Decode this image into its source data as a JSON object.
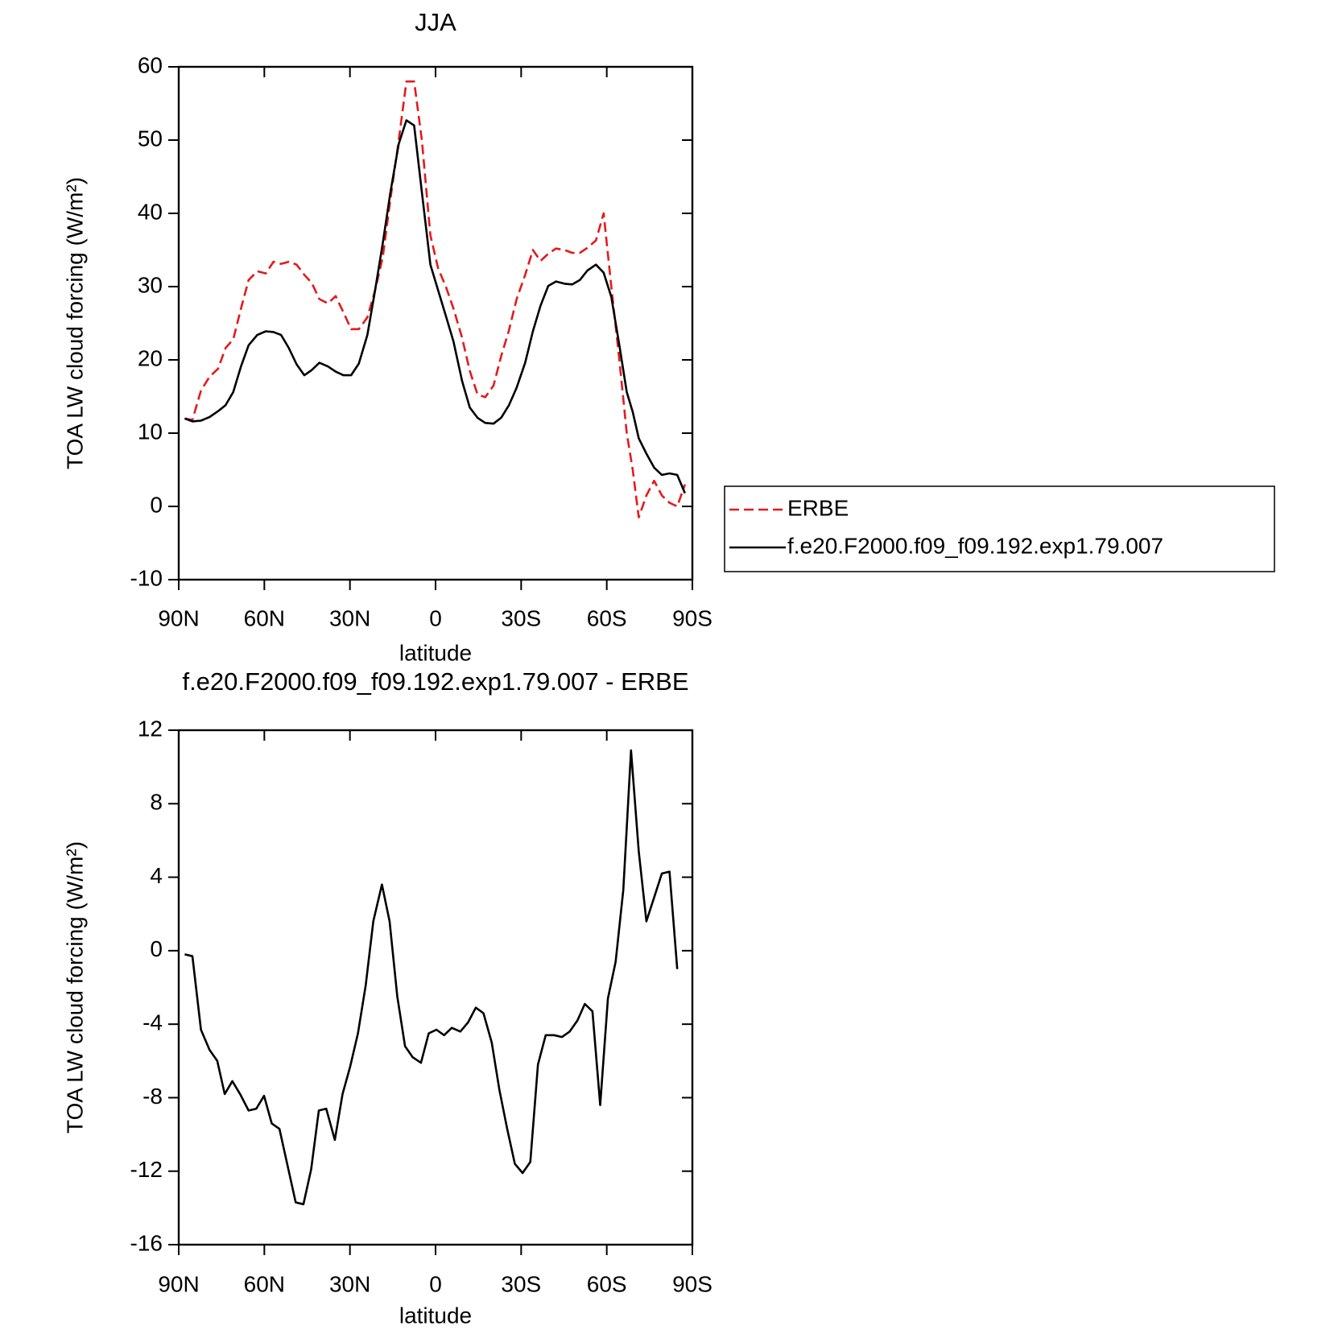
{
  "chart_data": [
    {
      "type": "line",
      "title": "JJA",
      "x_label": "latitude",
      "y_label": "TOA LW cloud forcing (W/m²)",
      "x": [
        87.9,
        85.2,
        82.2,
        79.2,
        76.2,
        73.6,
        70.9,
        68.2,
        65.5,
        62.5,
        59.5,
        56.8,
        54.1,
        51.4,
        48.7,
        46.0,
        43.4,
        40.7,
        37.7,
        35.0,
        32.3,
        29.6,
        26.9,
        23.9,
        21.2,
        18.5,
        15.8,
        12.9,
        10.2,
        7.5,
        4.8,
        1.8,
        -0.9,
        -3.6,
        -6.3,
        -9.3,
        -12.0,
        -14.7,
        -17.4,
        -20.3,
        -23.0,
        -25.7,
        -28.4,
        -31.4,
        -34.1,
        -36.8,
        -39.5,
        -42.2,
        -45.2,
        -47.9,
        -50.6,
        -53.2,
        -56.2,
        -58.9,
        -61.6,
        -64.4,
        -67.0,
        -69.1,
        -71.2,
        -73.9,
        -76.6,
        -79.3,
        -82.0,
        -84.7,
        -87.4
      ],
      "series": [
        {
          "name": "ERBE",
          "color": "#e41a1c",
          "linestyle": "dashed",
          "values": [
            12.0,
            11.8,
            15.8,
            17.7,
            18.8,
            21.6,
            22.8,
            27.0,
            30.9,
            32.1,
            31.8,
            33.4,
            33.1,
            33.4,
            33.0,
            31.6,
            30.5,
            28.3,
            27.7,
            28.7,
            26.5,
            24.2,
            24.2,
            25.8,
            29.5,
            34.0,
            42.0,
            50.0,
            58.0,
            58.0,
            50.0,
            37.0,
            32.5,
            30.0,
            27.0,
            23.0,
            18.5,
            15.3,
            14.9,
            16.5,
            20.5,
            24.0,
            28.3,
            31.6,
            35.0,
            33.5,
            34.5,
            35.2,
            35.0,
            34.6,
            34.6,
            35.3,
            36.3,
            40.0,
            30.0,
            20.0,
            10.0,
            5.0,
            -1.5,
            1.5,
            3.5,
            1.5,
            0.5,
            0.0,
            3.0
          ]
        },
        {
          "name": "f.e20.F2000.f09_f09.192.exp1.79.007",
          "color": "#000000",
          "linestyle": "solid",
          "values": [
            12.0,
            11.6,
            11.7,
            12.2,
            13.0,
            13.8,
            15.6,
            19.1,
            22.0,
            23.4,
            23.9,
            23.8,
            23.4,
            21.6,
            19.4,
            17.9,
            18.6,
            19.6,
            19.1,
            18.4,
            17.9,
            17.9,
            19.5,
            23.4,
            29.5,
            35.9,
            42.9,
            49.5,
            52.7,
            52.0,
            42.9,
            33.0,
            29.5,
            26.0,
            22.5,
            17.1,
            13.5,
            12.1,
            11.4,
            11.3,
            12.1,
            13.8,
            16.2,
            19.6,
            23.9,
            27.4,
            30.1,
            30.7,
            30.4,
            30.3,
            30.9,
            32.2,
            33.0,
            31.9,
            28.6,
            22.0,
            15.6,
            12.9,
            9.3,
            7.2,
            5.3,
            4.3,
            4.5,
            4.3,
            1.8
          ]
        }
      ],
      "xlim": [
        90,
        -90
      ],
      "xticks": [
        {
          "value": 90,
          "label": "90N"
        },
        {
          "value": 60,
          "label": "60N"
        },
        {
          "value": 30,
          "label": "30N"
        },
        0,
        {
          "value": -30,
          "label": "30S"
        },
        {
          "value": -60,
          "label": "60S"
        },
        {
          "value": -90,
          "label": "90S"
        }
      ],
      "ylim": [
        -10,
        60
      ],
      "yticks": [
        -10,
        0,
        10,
        20,
        30,
        40,
        50,
        60
      ],
      "legend": "right"
    },
    {
      "type": "line",
      "title": "f.e20.F2000.f09_f09.192.exp1.79.007 - ERBE",
      "x_label": "latitude",
      "y_label": "TOA LW cloud forcing (W/m²)",
      "x": [
        87.9,
        85.2,
        82.2,
        79.2,
        76.5,
        73.9,
        71.2,
        68.5,
        65.5,
        62.8,
        60.1,
        57.4,
        54.7,
        52.0,
        49.0,
        46.3,
        43.6,
        40.9,
        38.3,
        35.3,
        32.6,
        29.9,
        27.2,
        24.5,
        21.8,
        18.8,
        16.1,
        13.4,
        10.7,
        8.0,
        5.1,
        2.4,
        -0.3,
        -3.0,
        -5.7,
        -8.7,
        -11.4,
        -14.1,
        -16.8,
        -19.7,
        -22.4,
        -25.1,
        -27.8,
        -30.5,
        -33.2,
        -35.9,
        -38.6,
        -41.6,
        -44.3,
        -47.0,
        -49.7,
        -52.3,
        -55.0,
        -57.7,
        -60.4,
        -63.1,
        -65.8,
        -68.5,
        -71.2,
        -73.9,
        -76.6,
        -79.3,
        -82.0,
        -84.7
      ],
      "values": [
        -0.2,
        -0.3,
        -4.3,
        -5.4,
        -6.0,
        -7.8,
        -7.1,
        -7.8,
        -8.7,
        -8.6,
        -7.9,
        -9.4,
        -9.7,
        -11.6,
        -13.7,
        -13.8,
        -11.9,
        -8.7,
        -8.6,
        -10.3,
        -7.8,
        -6.3,
        -4.5,
        -1.9,
        1.6,
        3.6,
        1.6,
        -2.5,
        -5.2,
        -5.8,
        -6.1,
        -4.5,
        -4.3,
        -4.6,
        -4.2,
        -4.4,
        -3.9,
        -3.1,
        -3.4,
        -5.0,
        -7.6,
        -9.7,
        -11.6,
        -12.1,
        -11.5,
        -6.2,
        -4.6,
        -4.6,
        -4.7,
        -4.4,
        -3.8,
        -2.9,
        -3.3,
        -8.4,
        -2.6,
        -0.6,
        3.3,
        10.9,
        5.4,
        1.6,
        2.9,
        4.2,
        4.3,
        -1.0
      ],
      "color": "#000000",
      "xlim": [
        90,
        -90
      ],
      "xticks": [
        {
          "value": 90,
          "label": "90N"
        },
        {
          "value": 60,
          "label": "60N"
        },
        {
          "value": 30,
          "label": "30N"
        },
        0,
        {
          "value": -30,
          "label": "30S"
        },
        {
          "value": -60,
          "label": "60S"
        },
        {
          "value": -90,
          "label": "90S"
        }
      ],
      "ylim": [
        -16,
        12
      ],
      "yticks": [
        -16,
        -12,
        -8,
        -4,
        0,
        4,
        8,
        12
      ]
    }
  ]
}
